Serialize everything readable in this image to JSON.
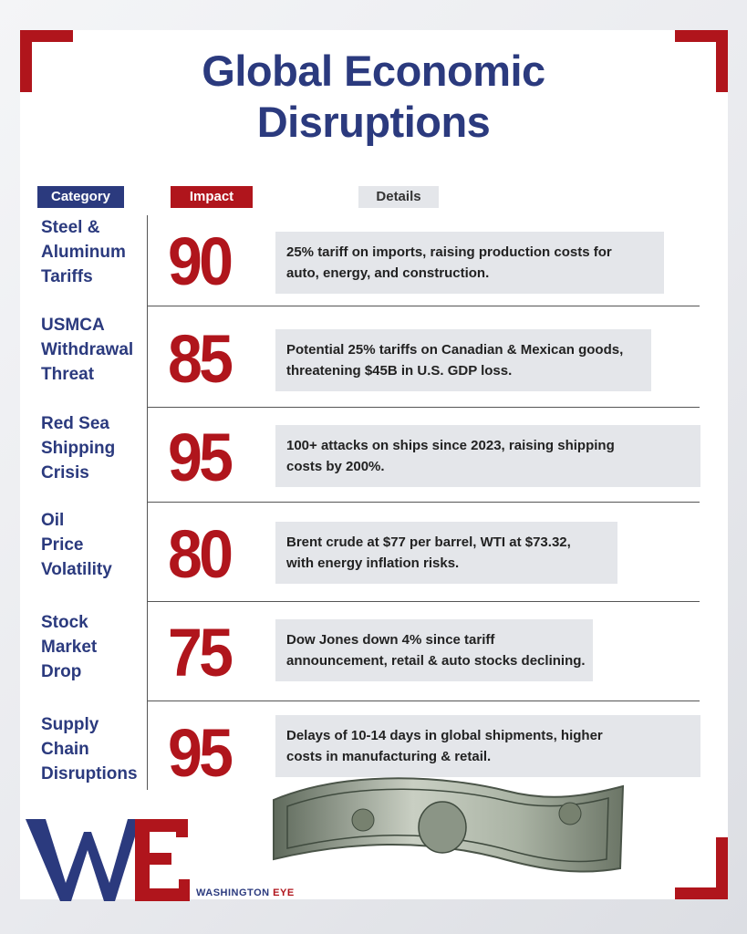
{
  "title_lines": [
    "Global Economic",
    "Disruptions"
  ],
  "headers": {
    "category": "Category",
    "impact": "Impact",
    "details": "Details"
  },
  "rows": [
    {
      "category": [
        "Steel &",
        "Aluminum",
        "Tariffs"
      ],
      "impact": "90",
      "details": [
        "25% tariff on imports, raising production costs for",
        "auto, energy, and construction."
      ]
    },
    {
      "category": [
        "USMCA",
        "Withdrawal",
        "Threat"
      ],
      "impact": "85",
      "details": [
        "Potential 25% tariffs on Canadian & Mexican goods,",
        "threatening $45B in U.S. GDP loss."
      ]
    },
    {
      "category": [
        "Red Sea",
        "Shipping",
        "Crisis"
      ],
      "impact": "95",
      "details": [
        "100+ attacks on ships since 2023, raising shipping",
        "costs by 200%."
      ]
    },
    {
      "category": [
        "Oil",
        "Price",
        "Volatility"
      ],
      "impact": "80",
      "details": [
        "Brent crude at $77 per barrel, WTI at $73.32,",
        "with energy inflation risks."
      ]
    },
    {
      "category": [
        "Stock",
        "Market",
        "Drop"
      ],
      "impact": "75",
      "details": [
        "Dow Jones down 4% since tariff",
        "announcement, retail & auto stocks declining."
      ]
    },
    {
      "category": [
        "Supply",
        "Chain",
        "Disruptions"
      ],
      "impact": "95",
      "details": [
        "Delays of 10-14 days in global shipments, higher",
        "costs in manufacturing & retail."
      ]
    }
  ],
  "brand": {
    "name_part1": "WASHINGTON",
    "name_part2": "EYE",
    "monogram": "WE"
  },
  "colors": {
    "navy": "#2b3a7e",
    "red": "#b0151c",
    "detail_bg": "#e4e6ea"
  }
}
